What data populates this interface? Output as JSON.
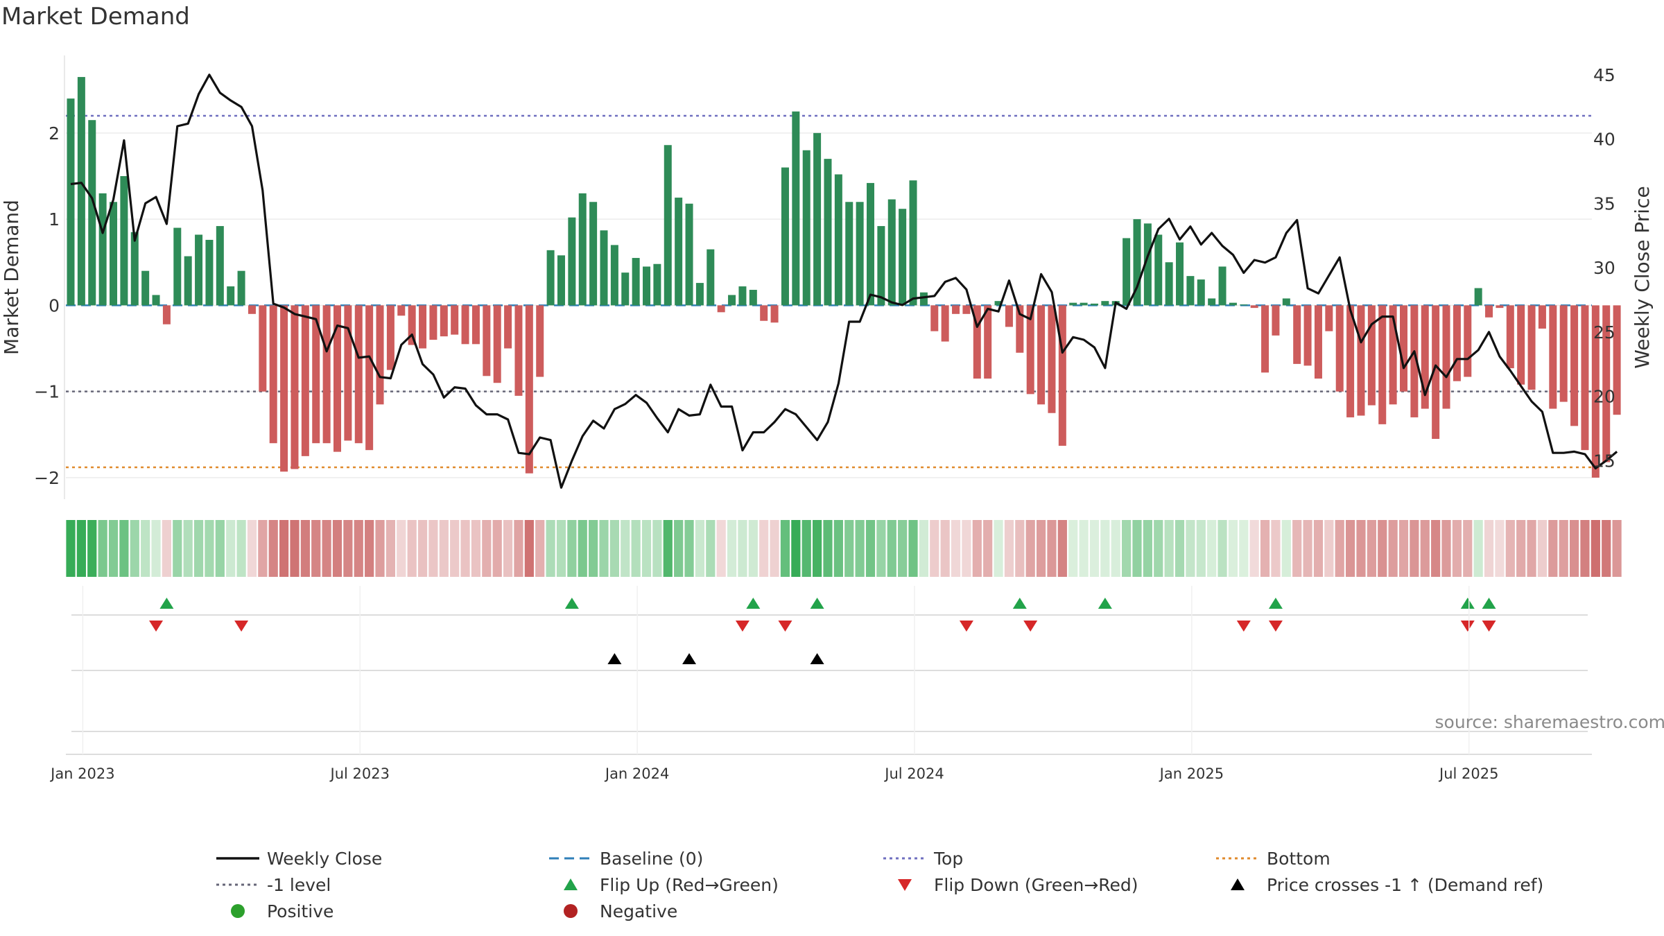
{
  "title": "Market Demand",
  "source": "source: sharemaestro.com",
  "colors": {
    "positive": "#2e8b57",
    "negative": "#cd5c5c",
    "price": "#111111",
    "top": "#6f6fbf",
    "bottom": "#e08a2c",
    "minus1": "#666677",
    "baseline": "#2f7fb8",
    "flip_up": "#22a34a",
    "flip_down": "#d62728",
    "cross": "#000000",
    "dot_positive": "#2ca02c",
    "dot_negative": "#b22222"
  },
  "chart_data": {
    "type": "bar+line",
    "title": "Market Demand",
    "ylabel_left": "Market Demand",
    "ylabel_right": "Weekly Close Price",
    "left_ticks": [
      "2",
      "1",
      "0",
      "−1",
      "−2"
    ],
    "left_tick_values": [
      2,
      1,
      0,
      -1,
      -2
    ],
    "right_ticks": [
      "45",
      "40",
      "35",
      "30",
      "25",
      "20",
      "15"
    ],
    "right_tick_values": [
      45,
      40,
      35,
      30,
      25,
      20,
      15
    ],
    "left_ylim": [
      -2.25,
      2.9
    ],
    "right_ylim": [
      12.0,
      46.5
    ],
    "levels": {
      "top": 2.2,
      "minus1": -1.0,
      "bottom": -1.88,
      "baseline": 0
    },
    "date_ticks": [
      {
        "label": "Jan 2023",
        "week": 1
      },
      {
        "label": "Jul 2023",
        "week": 27
      },
      {
        "label": "Jan 2024",
        "week": 53
      },
      {
        "label": "Jul 2024",
        "week": 79
      },
      {
        "label": "Jan 2025",
        "week": 105
      },
      {
        "label": "Jul 2025",
        "week": 131
      }
    ],
    "demand": [
      2.4,
      2.65,
      2.15,
      1.3,
      1.2,
      1.5,
      0.85,
      0.4,
      0.12,
      -0.22,
      0.9,
      0.57,
      0.82,
      0.76,
      0.92,
      0.22,
      0.4,
      -0.1,
      -1.0,
      -1.6,
      -1.93,
      -1.9,
      -1.75,
      -1.6,
      -1.6,
      -1.7,
      -1.57,
      -1.6,
      -1.68,
      -1.15,
      -0.75,
      -0.12,
      -0.46,
      -0.5,
      -0.4,
      -0.36,
      -0.34,
      -0.45,
      -0.45,
      -0.82,
      -0.9,
      -0.5,
      -1.05,
      -1.95,
      -0.83,
      0.64,
      0.58,
      1.02,
      1.3,
      1.2,
      0.87,
      0.7,
      0.38,
      0.55,
      0.45,
      0.48,
      1.86,
      1.25,
      1.18,
      0.26,
      0.65,
      -0.08,
      0.12,
      0.22,
      0.18,
      -0.18,
      -0.2,
      1.6,
      2.25,
      1.8,
      2.0,
      1.7,
      1.52,
      1.2,
      1.2,
      1.42,
      0.92,
      1.23,
      1.12,
      1.45,
      0.15,
      -0.3,
      -0.42,
      -0.1,
      -0.1,
      -0.85,
      -0.85,
      0.05,
      -0.25,
      -0.55,
      -1.03,
      -1.15,
      -1.25,
      -1.63,
      0.03,
      0.03,
      0.02,
      0.05,
      0.05,
      0.78,
      1.0,
      0.95,
      0.82,
      0.5,
      0.73,
      0.34,
      0.3,
      0.08,
      0.45,
      0.03,
      0.01,
      -0.03,
      -0.78,
      -0.35,
      0.08,
      -0.68,
      -0.7,
      -0.85,
      -0.3,
      -1.0,
      -1.3,
      -1.28,
      -1.16,
      -1.38,
      -1.15,
      -1.0,
      -1.3,
      -1.2,
      -1.55,
      -1.2,
      -0.88,
      -0.83,
      0.2,
      -0.14,
      -0.03,
      -0.73,
      -0.92,
      -0.98,
      -0.27,
      -1.2,
      -1.12,
      -1.4,
      -1.68,
      -2.0,
      -1.82,
      -1.27
    ],
    "price": [
      36.5,
      36.6,
      35.4,
      32.7,
      35.3,
      39.9,
      32.1,
      35.0,
      35.5,
      33.4,
      41.0,
      41.2,
      43.5,
      45.0,
      43.6,
      43.0,
      42.5,
      41.0,
      36.0,
      27.2,
      26.9,
      26.4,
      26.2,
      26.0,
      23.5,
      25.5,
      25.3,
      23.0,
      23.1,
      21.5,
      21.4,
      24.0,
      24.8,
      22.5,
      21.7,
      19.9,
      20.7,
      20.6,
      19.3,
      18.6,
      18.6,
      18.2,
      15.6,
      15.5,
      16.8,
      16.6,
      12.9,
      15.0,
      16.9,
      18.1,
      17.5,
      19.0,
      19.4,
      20.1,
      19.5,
      18.3,
      17.2,
      19.0,
      18.5,
      18.6,
      20.9,
      19.2,
      19.2,
      15.8,
      17.2,
      17.2,
      18.0,
      19.0,
      18.6,
      17.6,
      16.6,
      18.0,
      21.0,
      25.8,
      25.8,
      27.9,
      27.7,
      27.3,
      27.1,
      27.6,
      27.7,
      27.8,
      28.9,
      29.2,
      28.3,
      25.4,
      26.8,
      26.6,
      29.0,
      26.4,
      26.0,
      29.5,
      28.1,
      23.4,
      24.6,
      24.4,
      23.8,
      22.2,
      27.3,
      26.8,
      28.5,
      30.9,
      33.0,
      33.8,
      32.2,
      33.2,
      31.8,
      32.7,
      31.7,
      31.0,
      29.6,
      30.6,
      30.4,
      30.8,
      32.7,
      33.7,
      28.4,
      28.0,
      29.4,
      30.8,
      26.7,
      24.2,
      25.6,
      26.2,
      26.2,
      22.2,
      23.5,
      20.1,
      22.4,
      21.5,
      22.9,
      22.9,
      23.6,
      25.0,
      23.1,
      22.0,
      20.8,
      19.6,
      18.8,
      15.6,
      15.6,
      15.7,
      15.5,
      14.4,
      15.0,
      15.7
    ],
    "flip_up_weeks": [
      9,
      47,
      64,
      70,
      89,
      97,
      113,
      131,
      133
    ],
    "flip_down_weeks": [
      8,
      16,
      63,
      67,
      84,
      90,
      110,
      113,
      131,
      133
    ],
    "price_cross_weeks": [
      51,
      58,
      70
    ],
    "strip_label": "demand intensity strip"
  },
  "legend": [
    {
      "label": "Weekly Close",
      "marker": "solid-line"
    },
    {
      "label": "Baseline (0)",
      "marker": "dash-line"
    },
    {
      "label": "Top",
      "marker": "dot-line-top"
    },
    {
      "label": "Bottom",
      "marker": "dot-line-bottom"
    },
    {
      "label": "-1 level",
      "marker": "dot-line-minus1"
    },
    {
      "label": "Flip Up (Red→Green)",
      "marker": "triangle-up-green"
    },
    {
      "label": "Flip Down (Green→Red)",
      "marker": "triangle-down-red"
    },
    {
      "label": "Price crosses -1 ↑ (Demand ref)",
      "marker": "triangle-up-black"
    },
    {
      "label": "Positive",
      "marker": "dot-green"
    },
    {
      "label": "Negative",
      "marker": "dot-red"
    }
  ]
}
